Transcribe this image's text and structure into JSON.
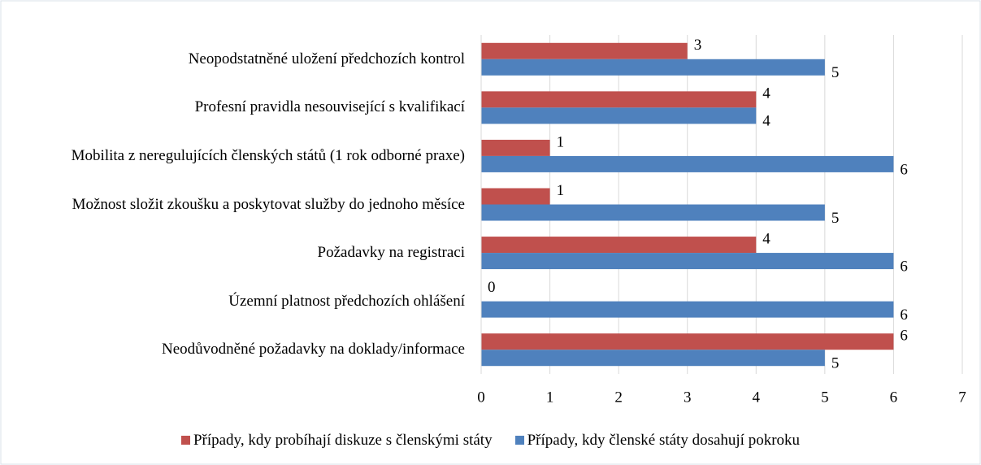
{
  "chart_data": {
    "type": "hbar",
    "categories": [
      "Neopodstatněné uložení předchozích kontrol",
      "Profesní pravidla nesouvisející s kvalifikací",
      "Mobilita z neregulujících členských států (1 rok odborné praxe)",
      "Možnost složit zkoušku a poskytovat služby do jednoho měsíce",
      "Požadavky na registraci",
      "Územní platnost předchozích ohlášení",
      "Neodůvodněné požadavky na doklady/informace"
    ],
    "series": [
      {
        "name": "Případy, kdy probíhají diskuze s členskými státy",
        "color": "#c0504d",
        "values": [
          3,
          4,
          1,
          1,
          4,
          0,
          6
        ]
      },
      {
        "name": "Případy, kdy členské státy dosahují pokroku",
        "color": "#4f81bd",
        "values": [
          5,
          4,
          6,
          5,
          6,
          6,
          5
        ]
      }
    ],
    "xlim": [
      0,
      7
    ],
    "xticks": [
      0,
      1,
      2,
      3,
      4,
      5,
      6,
      7
    ],
    "grid": true,
    "legend": "bottom"
  }
}
